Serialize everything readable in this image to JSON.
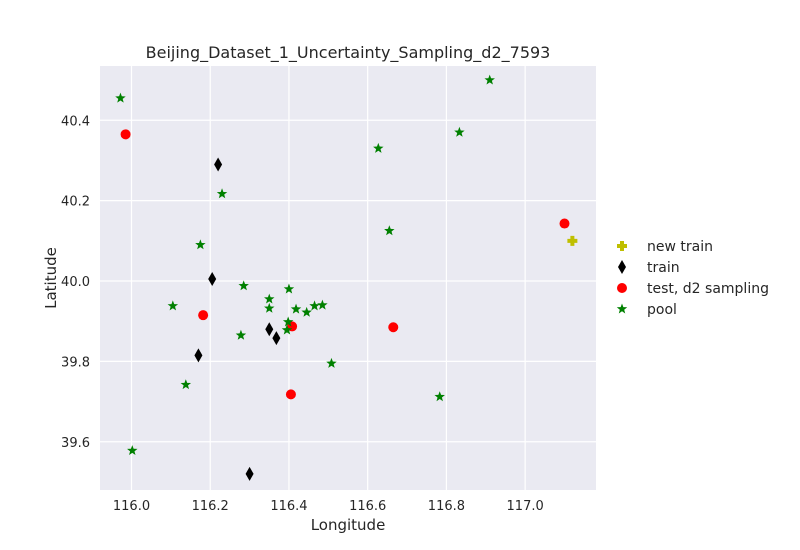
{
  "chart_data": {
    "type": "scatter",
    "title": "Beijing_Dataset_1_Uncertainty_Sampling_d2_7593",
    "xlabel": "Longitude",
    "ylabel": "Latitude",
    "xlim": [
      115.92,
      117.18
    ],
    "ylim": [
      39.48,
      40.535
    ],
    "xticks": [
      116.0,
      116.2,
      116.4,
      116.6,
      116.8,
      117.0
    ],
    "yticks": [
      39.6,
      39.8,
      40.0,
      40.2,
      40.4
    ],
    "xtick_labels": [
      "116.0",
      "116.2",
      "116.4",
      "116.6",
      "116.8",
      "117.0"
    ],
    "ytick_labels": [
      "39.6",
      "39.8",
      "40.0",
      "40.2",
      "40.4"
    ],
    "grid": true,
    "legend_position": "outside-right",
    "background": "#eaeaf2",
    "series": [
      {
        "name": "new train",
        "marker": "plus",
        "color": "#bfbf00",
        "points": [
          [
            117.12,
            40.1
          ]
        ]
      },
      {
        "name": "train",
        "marker": "thin_diamond",
        "color": "#000000",
        "points": [
          [
            116.22,
            40.29
          ],
          [
            116.205,
            40.005
          ],
          [
            116.35,
            39.88
          ],
          [
            116.368,
            39.858
          ],
          [
            116.17,
            39.815
          ],
          [
            116.3,
            39.52
          ]
        ]
      },
      {
        "name": "test, d2 sampling",
        "marker": "circle",
        "color": "#ff0000",
        "points": [
          [
            115.985,
            40.365
          ],
          [
            116.182,
            39.915
          ],
          [
            116.408,
            39.887
          ],
          [
            116.405,
            39.718
          ],
          [
            116.665,
            39.885
          ],
          [
            117.1,
            40.143
          ]
        ]
      },
      {
        "name": "pool",
        "marker": "star",
        "color": "#008000",
        "points": [
          [
            115.972,
            40.455
          ],
          [
            116.91,
            40.5
          ],
          [
            116.833,
            40.37
          ],
          [
            116.627,
            40.33
          ],
          [
            116.23,
            40.217
          ],
          [
            116.655,
            40.125
          ],
          [
            116.175,
            40.09
          ],
          [
            116.285,
            39.988
          ],
          [
            116.4,
            39.98
          ],
          [
            116.35,
            39.955
          ],
          [
            116.35,
            39.932
          ],
          [
            116.105,
            39.938
          ],
          [
            116.418,
            39.93
          ],
          [
            116.445,
            39.922
          ],
          [
            116.465,
            39.938
          ],
          [
            116.485,
            39.94
          ],
          [
            116.398,
            39.898
          ],
          [
            116.395,
            39.878
          ],
          [
            116.278,
            39.865
          ],
          [
            116.508,
            39.795
          ],
          [
            116.138,
            39.742
          ],
          [
            116.783,
            39.712
          ],
          [
            116.002,
            39.578
          ]
        ]
      }
    ]
  }
}
